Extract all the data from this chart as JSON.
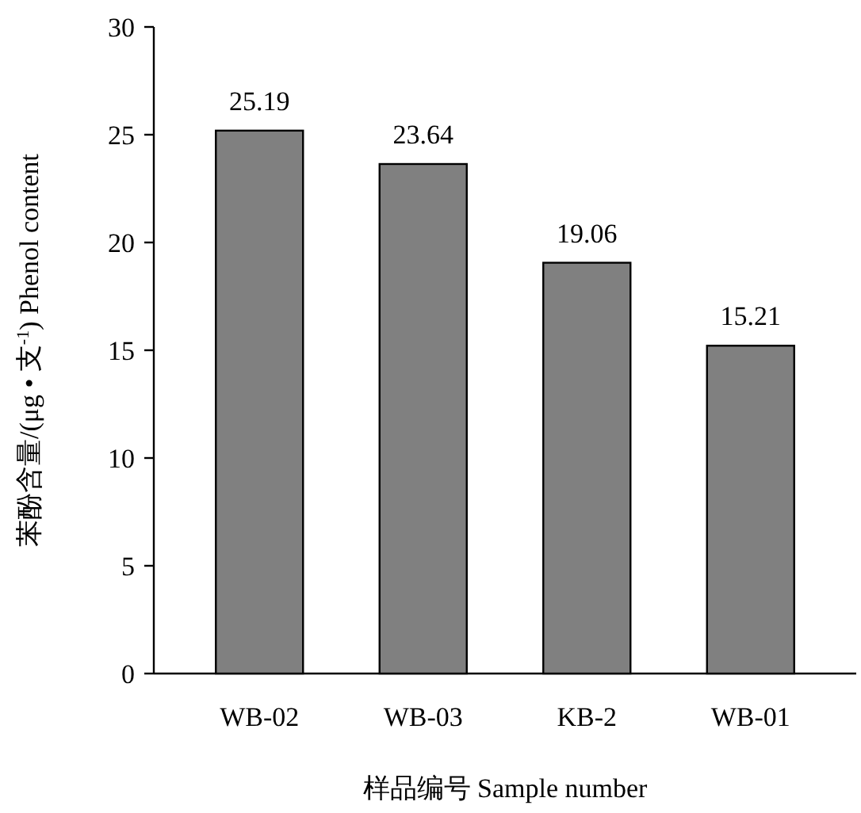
{
  "chart_data": {
    "type": "bar",
    "xlabel": "样品编号  Sample number",
    "ylabel": "苯酚含量/(μg • 支$^{-1}$) Phenol content",
    "categories": [
      "WB-02",
      "WB-03",
      "KB-2",
      "WB-01"
    ],
    "values": [
      25.19,
      23.64,
      19.06,
      15.21
    ],
    "color": "#808080",
    "ylim": [
      0,
      30
    ],
    "yticks": [
      0,
      5,
      10,
      15,
      20,
      25,
      30
    ],
    "data_labels": true,
    "grid": false
  }
}
